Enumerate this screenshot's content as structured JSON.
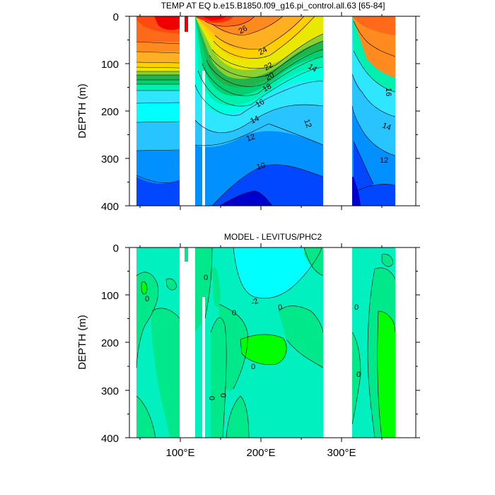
{
  "chart_data": [
    {
      "type": "contour",
      "title": "TEMP AT EQ b.e15.B1850.f09_g16.pi_control.all.63 [65-84]",
      "ylabel": "DEPTH (m)",
      "xlabel": "",
      "x_range": [
        35,
        390
      ],
      "x_unit": "degrees E",
      "ylim": [
        0,
        400
      ],
      "y_inverted": true,
      "y_ticks": [
        "0",
        "100",
        "200",
        "300",
        "400"
      ],
      "x_ticks": [
        "100°E",
        "200°E",
        "300°E"
      ],
      "land_gaps_lon": [
        [
          97,
          107
        ],
        [
          109,
          119
        ],
        [
          278,
          314
        ]
      ],
      "ocean_basins_lon": [
        [
          44,
          97
        ],
        [
          119,
          278
        ],
        [
          314,
          368
        ]
      ],
      "contour_interval": 1,
      "contour_labels": [
        "26",
        "24",
        "22",
        "20",
        "18",
        "16",
        "14",
        "12",
        "10",
        "14",
        "16",
        "14",
        "12"
      ],
      "min_value": 8,
      "max_value": 29,
      "colors": [
        "#0000cc",
        "#0047ff",
        "#0090ff",
        "#27c4ff",
        "#2fe6ff",
        "#00ffe0",
        "#00f0b0",
        "#00d070",
        "#22b44a",
        "#8ad030",
        "#e8e800",
        "#ffd000",
        "#ffb020",
        "#ff8a20",
        "#ff6a1a",
        "#ff4a10",
        "#ff2a08",
        "#ee0000"
      ]
    },
    {
      "type": "contour",
      "title": "MODEL - LEVITUS/PHC2",
      "ylabel": "DEPTH (m)",
      "xlabel": "",
      "x_range": [
        35,
        390
      ],
      "x_unit": "degrees E",
      "ylim": [
        0,
        400
      ],
      "y_inverted": true,
      "y_ticks": [
        "0",
        "100",
        "200",
        "300",
        "400"
      ],
      "x_ticks": [
        "100°E",
        "200°E",
        "300°E"
      ],
      "land_gaps_lon": [
        [
          97,
          107
        ],
        [
          109,
          119
        ],
        [
          278,
          314
        ]
      ],
      "ocean_basins_lon": [
        [
          44,
          97
        ],
        [
          119,
          278
        ],
        [
          314,
          368
        ]
      ],
      "contour_labels": [
        "0",
        "0",
        "0",
        "-2",
        "0",
        "0",
        "0",
        "0",
        "0",
        "0"
      ],
      "colors": [
        "#00ffff",
        "#00f0c0",
        "#00e88a",
        "#00ff00"
      ]
    }
  ]
}
